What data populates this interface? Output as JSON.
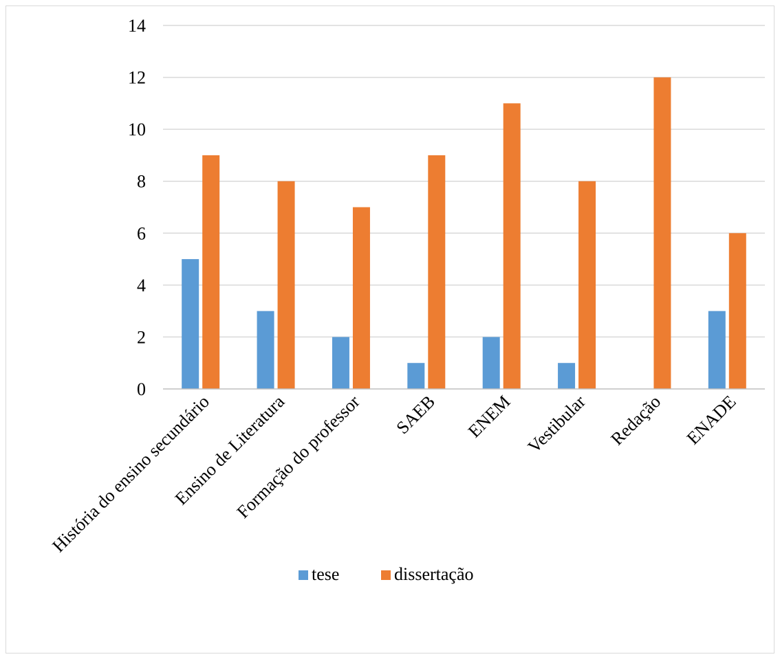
{
  "chart_data": {
    "type": "bar",
    "categories": [
      "História do ensino secundário",
      "Ensino de Literatura",
      "Formação do professor",
      "SAEB",
      "ENEM",
      "Vestibular",
      "Redação",
      "ENADE"
    ],
    "series": [
      {
        "name": "tese",
        "color": "#5b9bd5",
        "values": [
          5,
          3,
          2,
          1,
          2,
          1,
          0,
          3
        ]
      },
      {
        "name": "dissertação",
        "color": "#ed7d31",
        "values": [
          9,
          8,
          7,
          9,
          11,
          8,
          12,
          6
        ]
      }
    ],
    "ylim": [
      0,
      14
    ],
    "yticks": [
      0,
      2,
      4,
      6,
      8,
      10,
      12,
      14
    ],
    "grid": true,
    "legend_position": "bottom"
  }
}
